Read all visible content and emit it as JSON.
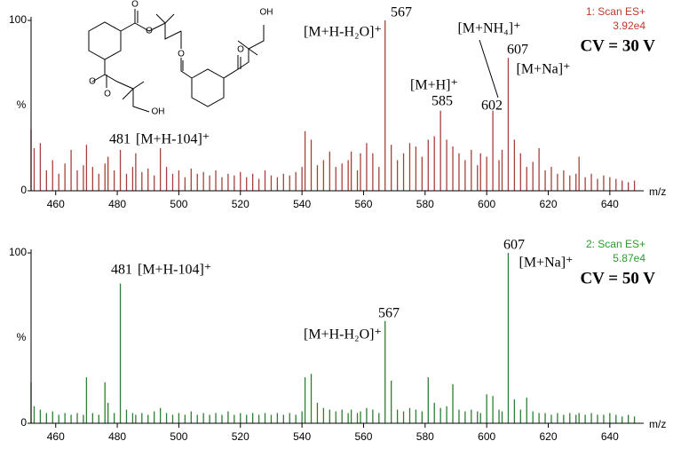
{
  "chart_data": [
    {
      "type": "bar",
      "scan_label": "1: Scan ES+",
      "intensity": "3.92e4",
      "condition": "CV = 30 V",
      "color": "#a8403a",
      "label_color": "#c0392b",
      "xlabel": "m/z",
      "ylabel": "%",
      "xlim": [
        452,
        651
      ],
      "ylim": [
        0,
        100
      ],
      "xticks": [
        460,
        480,
        500,
        520,
        540,
        560,
        580,
        600,
        620,
        640
      ],
      "yticks": [
        0,
        100
      ],
      "annotations": [
        "567",
        "[M+H-H₂O]⁺",
        "[M+H]⁺",
        "585",
        "[M+NH₄]⁺",
        "602",
        "607",
        "[M+Na]⁺",
        "481",
        "[M+H-104]⁺"
      ],
      "x": [
        452,
        453,
        455,
        457,
        459,
        461,
        463,
        465,
        467,
        469,
        470,
        472,
        474,
        476,
        477,
        479,
        481,
        483,
        485,
        486,
        488,
        490,
        492,
        494,
        496,
        498,
        500,
        502,
        504,
        506,
        508,
        510,
        512,
        514,
        516,
        518,
        520,
        522,
        524,
        526,
        528,
        530,
        532,
        534,
        536,
        538,
        540,
        541,
        543,
        545,
        547,
        549,
        551,
        553,
        555,
        556,
        558,
        559,
        561,
        563,
        565,
        567,
        569,
        571,
        573,
        575,
        577,
        579,
        581,
        583,
        585,
        587,
        589,
        591,
        593,
        595,
        597,
        598,
        600,
        602,
        604,
        605,
        607,
        609,
        611,
        613,
        615,
        617,
        619,
        621,
        623,
        625,
        627,
        629,
        630,
        632,
        634,
        636,
        638,
        640,
        642,
        644,
        646,
        648
      ],
      "values": [
        36,
        25,
        28,
        12,
        18,
        10,
        16,
        24,
        12,
        15,
        27,
        14,
        10,
        16,
        20,
        12,
        24,
        10,
        14,
        22,
        11,
        13,
        9,
        25,
        14,
        10,
        12,
        8,
        13,
        10,
        11,
        9,
        12,
        8,
        10,
        9,
        11,
        8,
        10,
        7,
        12,
        9,
        8,
        10,
        9,
        11,
        14,
        35,
        30,
        15,
        18,
        23,
        14,
        16,
        18,
        23,
        12,
        22,
        28,
        22,
        14,
        100,
        27,
        18,
        22,
        28,
        26,
        20,
        30,
        32,
        47,
        30,
        26,
        22,
        18,
        24,
        15,
        22,
        20,
        47,
        18,
        24,
        78,
        30,
        22,
        14,
        17,
        25,
        12,
        14,
        10,
        12,
        9,
        10,
        20,
        8,
        10,
        7,
        9,
        8,
        7,
        6,
        5,
        6
      ]
    },
    {
      "type": "bar",
      "scan_label": "2: Scan ES+",
      "intensity": "5.87e4",
      "condition": "CV = 50 V",
      "color": "#2e7d32",
      "label_color": "#2a9a2a",
      "xlabel": "m/z",
      "ylabel": "%",
      "xlim": [
        452,
        651
      ],
      "ylim": [
        0,
        100
      ],
      "xticks": [
        460,
        480,
        500,
        520,
        540,
        560,
        580,
        600,
        620,
        640
      ],
      "yticks": [
        0,
        100
      ],
      "annotations": [
        "607",
        "[M+Na]⁺",
        "481",
        "[M+H-104]⁺",
        "567",
        "[M+H-H₂O]⁺"
      ],
      "x": [
        452,
        453,
        455,
        457,
        459,
        461,
        463,
        465,
        467,
        469,
        470,
        472,
        474,
        476,
        477,
        479,
        481,
        483,
        485,
        486,
        488,
        490,
        492,
        494,
        496,
        498,
        500,
        502,
        504,
        506,
        508,
        510,
        512,
        514,
        516,
        518,
        520,
        522,
        524,
        526,
        528,
        530,
        532,
        534,
        536,
        538,
        540,
        541,
        543,
        545,
        547,
        549,
        551,
        553,
        555,
        556,
        558,
        559,
        561,
        563,
        565,
        567,
        569,
        571,
        573,
        575,
        577,
        579,
        581,
        583,
        585,
        587,
        589,
        591,
        593,
        595,
        597,
        598,
        600,
        602,
        604,
        605,
        607,
        609,
        611,
        613,
        615,
        617,
        619,
        621,
        623,
        625,
        627,
        629,
        630,
        632,
        634,
        636,
        638,
        640,
        642,
        644,
        646,
        648
      ],
      "values": [
        24,
        10,
        8,
        6,
        7,
        5,
        6,
        5,
        6,
        5,
        27,
        6,
        5,
        24,
        12,
        6,
        82,
        8,
        6,
        5,
        6,
        5,
        7,
        9,
        6,
        5,
        6,
        5,
        7,
        5,
        6,
        5,
        6,
        5,
        7,
        5,
        6,
        5,
        6,
        5,
        6,
        5,
        6,
        5,
        6,
        5,
        7,
        27,
        29,
        12,
        9,
        8,
        7,
        8,
        6,
        8,
        6,
        7,
        9,
        8,
        6,
        60,
        25,
        8,
        7,
        9,
        8,
        7,
        27,
        12,
        9,
        10,
        23,
        8,
        7,
        8,
        7,
        6,
        17,
        16,
        8,
        7,
        100,
        14,
        8,
        15,
        7,
        6,
        6,
        5,
        6,
        5,
        6,
        5,
        6,
        5,
        6,
        5,
        5,
        6,
        5,
        4,
        5,
        4
      ]
    }
  ],
  "structure": {
    "labels": [
      "O",
      "O",
      "O",
      "O",
      "O",
      "O",
      "OH",
      "OH"
    ]
  }
}
